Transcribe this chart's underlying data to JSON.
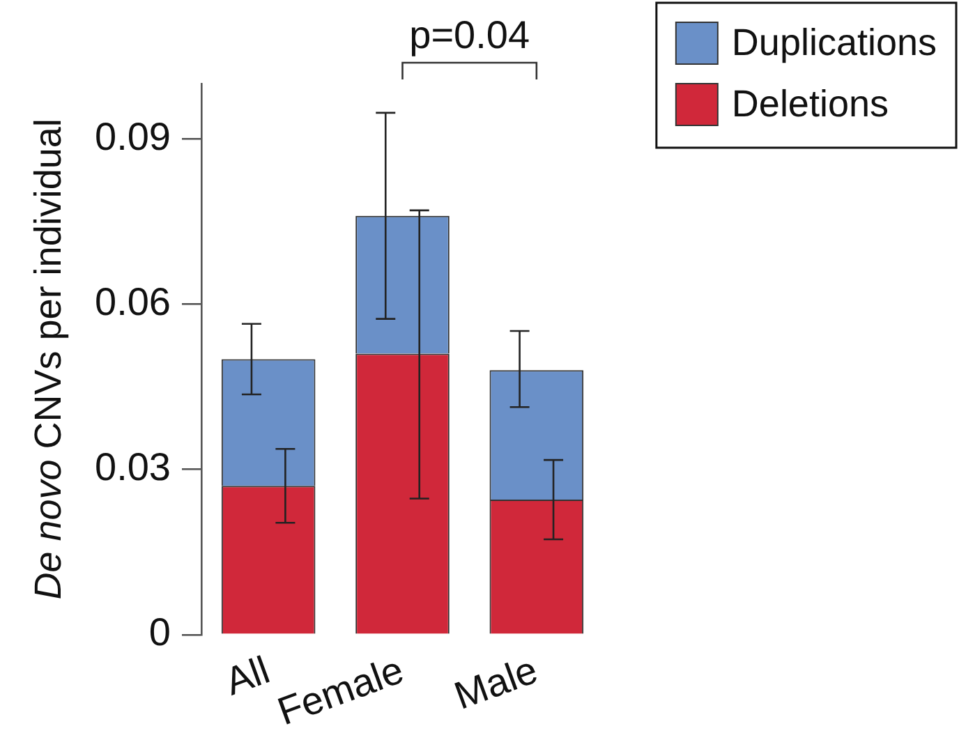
{
  "chart_data": {
    "type": "bar",
    "stacked": true,
    "ylabel": "De novo CNVs per individual",
    "categories": [
      "All",
      "Female",
      "Male"
    ],
    "series": [
      {
        "name": "Deletions",
        "color": "#d0283a",
        "values": [
          0.027,
          0.051,
          0.0245
        ],
        "errors": [
          [
            0.0203,
            0.0337
          ],
          [
            0.0247,
            0.077
          ],
          [
            0.0173,
            0.0317
          ]
        ]
      },
      {
        "name": "Duplications",
        "color": "#6a90c8",
        "values": [
          0.023,
          0.025,
          0.0235
        ],
        "errors": [
          [
            0.0436,
            0.0564
          ],
          [
            0.0573,
            0.0947
          ],
          [
            0.0413,
            0.0551
          ]
        ]
      }
    ],
    "ylim": [
      0,
      0.1
    ],
    "yticks": [
      0,
      0.03,
      0.06,
      0.09
    ],
    "grid": false,
    "legend": "top right",
    "annotations": [
      "p=0.04"
    ]
  }
}
